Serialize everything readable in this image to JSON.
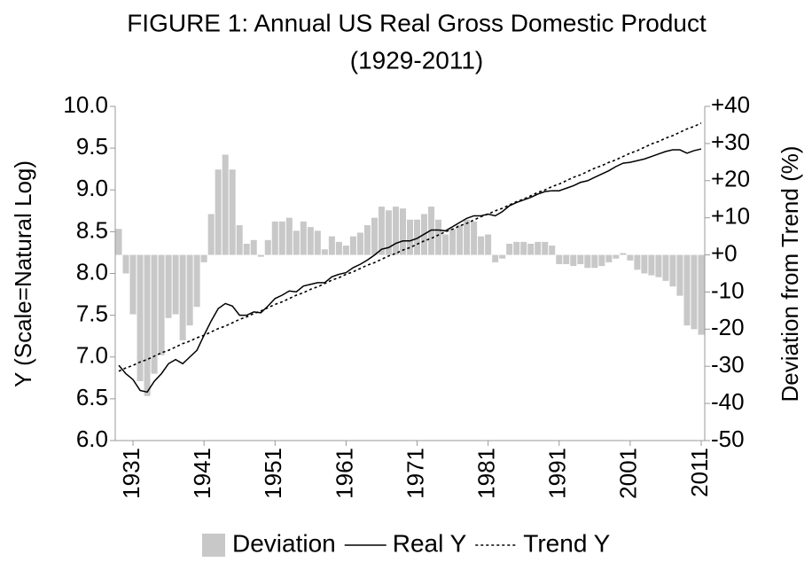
{
  "chart_data": {
    "type": "combo",
    "title": [
      "FIGURE 1: Annual US Real Gross Domestic Product",
      "(1929-2011)"
    ],
    "y_label": "Y (Scale=Natural Log)",
    "y2_label": "Deviation from Trend (%)",
    "x": [
      1929,
      1930,
      1931,
      1932,
      1933,
      1934,
      1935,
      1936,
      1937,
      1938,
      1939,
      1940,
      1941,
      1942,
      1943,
      1944,
      1945,
      1946,
      1947,
      1948,
      1949,
      1950,
      1951,
      1952,
      1953,
      1954,
      1955,
      1956,
      1957,
      1958,
      1959,
      1960,
      1961,
      1962,
      1963,
      1964,
      1965,
      1966,
      1967,
      1968,
      1969,
      1970,
      1971,
      1972,
      1973,
      1974,
      1975,
      1976,
      1977,
      1978,
      1979,
      1980,
      1981,
      1982,
      1983,
      1984,
      1985,
      1986,
      1987,
      1988,
      1989,
      1990,
      1991,
      1992,
      1993,
      1994,
      1995,
      1996,
      1997,
      1998,
      1999,
      2000,
      2001,
      2002,
      2003,
      2004,
      2005,
      2006,
      2007,
      2008,
      2009,
      2010,
      2011
    ],
    "xlim": [
      1928.5,
      2011.5
    ],
    "xticks": [
      1931,
      1941,
      1951,
      1961,
      1971,
      1981,
      1991,
      2001,
      2011
    ],
    "ylim": [
      6,
      10
    ],
    "yticks": [
      {
        "value": 6,
        "label": "6.0"
      },
      {
        "value": 6.5,
        "label": "6.5"
      },
      {
        "value": 7,
        "label": "7.0"
      },
      {
        "value": 7.5,
        "label": "7.5"
      },
      {
        "value": 8,
        "label": "8.0"
      },
      {
        "value": 8.5,
        "label": "8.5"
      },
      {
        "value": 9,
        "label": "9.0"
      },
      {
        "value": 9.5,
        "label": "9.5"
      },
      {
        "value": 10,
        "label": "10.0"
      }
    ],
    "y2lim": [
      -50,
      40
    ],
    "y2ticks": [
      {
        "value": 40,
        "label": "+40"
      },
      {
        "value": 30,
        "label": "+30"
      },
      {
        "value": 20,
        "label": "+20"
      },
      {
        "value": 10,
        "label": "+10"
      },
      {
        "value": 0,
        "label": "+0"
      },
      -10,
      -20,
      -30,
      -40,
      -50
    ],
    "legend": "bottom",
    "series": [
      {
        "name": "Deviation",
        "type": "bar",
        "axis": "y2",
        "color": "#c8c8c8",
        "values": [
          7,
          -5,
          -16,
          -34,
          -38,
          -32,
          -27,
          -17,
          -16,
          -23,
          -19,
          -14,
          -2,
          11,
          23,
          27,
          23,
          8,
          3,
          4,
          -0.5,
          4,
          9,
          9,
          10,
          6.5,
          9,
          7.5,
          6.5,
          1.5,
          5,
          3.5,
          2.5,
          5,
          6,
          8,
          10,
          13,
          12,
          13,
          12.5,
          9.5,
          9.5,
          11,
          13,
          9.5,
          5.5,
          7,
          8,
          9.5,
          9,
          5,
          5.5,
          -2,
          -1,
          3,
          3.5,
          3.5,
          3,
          3.5,
          3.5,
          2.5,
          -2.5,
          -2.5,
          -3,
          -2.5,
          -3.5,
          -3.5,
          -3,
          -2,
          -1,
          0.5,
          -1.5,
          -4,
          -5,
          -5.5,
          -6,
          -7,
          -8.5,
          -11,
          -19,
          -20,
          -21.5
        ]
      },
      {
        "name": "Real Y",
        "type": "line",
        "color": "#000000",
        "values": [
          6.9,
          6.8,
          6.73,
          6.6,
          6.58,
          6.71,
          6.8,
          6.92,
          6.97,
          6.92,
          7.0,
          7.08,
          7.26,
          7.43,
          7.58,
          7.64,
          7.61,
          7.5,
          7.5,
          7.54,
          7.53,
          7.61,
          7.7,
          7.74,
          7.79,
          7.78,
          7.85,
          7.87,
          7.89,
          7.89,
          7.96,
          7.99,
          8.01,
          8.07,
          8.11,
          8.16,
          8.22,
          8.29,
          8.31,
          8.36,
          8.39,
          8.39,
          8.42,
          8.47,
          8.52,
          8.52,
          8.51,
          8.56,
          8.61,
          8.66,
          8.69,
          8.69,
          8.71,
          8.69,
          8.74,
          8.81,
          8.85,
          8.88,
          8.91,
          8.95,
          8.98,
          8.99,
          8.99,
          9.02,
          9.05,
          9.09,
          9.11,
          9.15,
          9.19,
          9.23,
          9.28,
          9.32,
          9.33,
          9.35,
          9.37,
          9.4,
          9.43,
          9.46,
          9.48,
          9.48,
          9.44,
          9.47,
          9.49
        ]
      },
      {
        "name": "Trend Y",
        "type": "line",
        "dash": "dotted",
        "color": "#000000",
        "values": [
          6.83,
          6.87,
          6.9,
          6.94,
          6.97,
          7.01,
          7.05,
          7.08,
          7.12,
          7.16,
          7.19,
          7.23,
          7.26,
          7.3,
          7.34,
          7.37,
          7.41,
          7.45,
          7.48,
          7.52,
          7.55,
          7.59,
          7.63,
          7.66,
          7.7,
          7.74,
          7.77,
          7.81,
          7.84,
          7.88,
          7.92,
          7.95,
          7.99,
          8.02,
          8.06,
          8.1,
          8.13,
          8.17,
          8.21,
          8.24,
          8.28,
          8.31,
          8.35,
          8.39,
          8.42,
          8.46,
          8.5,
          8.53,
          8.57,
          8.6,
          8.64,
          8.68,
          8.71,
          8.75,
          8.78,
          8.82,
          8.86,
          8.89,
          8.93,
          8.97,
          9.0,
          9.04,
          9.07,
          9.11,
          9.15,
          9.18,
          9.22,
          9.26,
          9.29,
          9.33,
          9.36,
          9.4,
          9.44,
          9.47,
          9.51,
          9.55,
          9.58,
          9.62,
          9.65,
          9.69,
          9.73,
          9.76,
          9.8
        ]
      }
    ]
  }
}
